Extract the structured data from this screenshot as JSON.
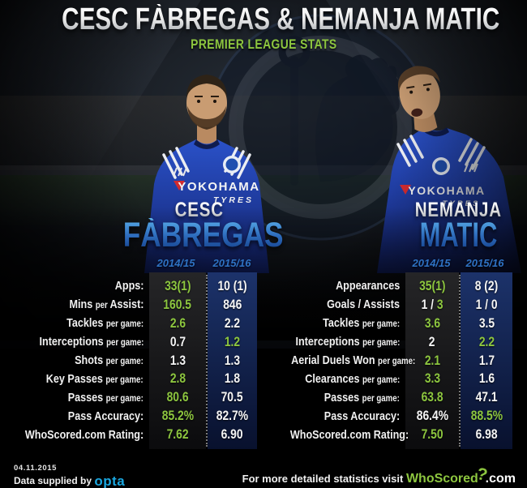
{
  "colors": {
    "green": "#8dc63f",
    "opta_blue": "#1aa7e0",
    "season_blue": "#2e72c4",
    "name_blue": "#2f6fc0",
    "silver": "#e9e9e9"
  },
  "header": {
    "title": "CESC FÀBREGAS & NEMANJA MATIC",
    "subtitle": "PREMIER LEAGUE STATS"
  },
  "jersey": {
    "sponsor": "YOKOHAMA",
    "sponsor_sub": "TYRES"
  },
  "players": [
    {
      "name_first": "CESC",
      "name_last": "FÀBREGAS",
      "seasons": [
        "2014/15",
        "2015/16"
      ],
      "rows": [
        {
          "label": [
            [
              "Apps:",
              1
            ]
          ],
          "c1": [
            [
              "33(1)",
              1
            ]
          ],
          "c2": [
            [
              "10 (1)",
              0
            ]
          ]
        },
        {
          "label": [
            [
              "Mins ",
              1
            ],
            [
              "per ",
              0
            ],
            [
              "Assist:",
              1
            ]
          ],
          "c1": [
            [
              "160.5",
              1
            ]
          ],
          "c2": [
            [
              "846",
              0
            ]
          ]
        },
        {
          "label": [
            [
              "Tackles ",
              1
            ],
            [
              "per game:",
              0
            ]
          ],
          "c1": [
            [
              "2.6",
              1
            ]
          ],
          "c2": [
            [
              "2.2",
              0
            ]
          ]
        },
        {
          "label": [
            [
              "Interceptions ",
              1
            ],
            [
              "per game:",
              0
            ]
          ],
          "c1": [
            [
              "0.7",
              0
            ]
          ],
          "c2": [
            [
              "1.2",
              1
            ]
          ]
        },
        {
          "label": [
            [
              "Shots ",
              1
            ],
            [
              "per game:",
              0
            ]
          ],
          "c1": [
            [
              "1.3",
              0
            ]
          ],
          "c2": [
            [
              "1.3",
              0
            ]
          ]
        },
        {
          "label": [
            [
              "Key Passes ",
              1
            ],
            [
              "per game:",
              0
            ]
          ],
          "c1": [
            [
              "2.8",
              1
            ]
          ],
          "c2": [
            [
              "1.8",
              0
            ]
          ]
        },
        {
          "label": [
            [
              "Passes ",
              1
            ],
            [
              "per game:",
              0
            ]
          ],
          "c1": [
            [
              "80.6",
              1
            ]
          ],
          "c2": [
            [
              "70.5",
              0
            ]
          ]
        },
        {
          "label": [
            [
              "Pass Accuracy:",
              1
            ]
          ],
          "c1": [
            [
              "85.2%",
              1
            ]
          ],
          "c2": [
            [
              "82.7%",
              0
            ]
          ]
        },
        {
          "label": [
            [
              "WhoScored.com Rating:",
              1
            ]
          ],
          "c1": [
            [
              "7.62",
              1
            ]
          ],
          "c2": [
            [
              "6.90",
              0
            ]
          ]
        }
      ]
    },
    {
      "name_first": "NEMANJA",
      "name_last": "MATIC",
      "seasons": [
        "2014/15",
        "2015/16"
      ],
      "rows": [
        {
          "label": [
            [
              "Appearances",
              1
            ]
          ],
          "c1": [
            [
              "35(1)",
              1
            ]
          ],
          "c2": [
            [
              "8 (2)",
              0
            ]
          ]
        },
        {
          "label": [
            [
              "Goals / Assists",
              1
            ]
          ],
          "c1": [
            [
              "1 / ",
              0
            ],
            [
              "3",
              1
            ]
          ],
          "c2": [
            [
              "1 / 0",
              0
            ]
          ]
        },
        {
          "label": [
            [
              "Tackles ",
              1
            ],
            [
              "per game:",
              0
            ]
          ],
          "c1": [
            [
              "3.6",
              1
            ]
          ],
          "c2": [
            [
              "3.5",
              0
            ]
          ]
        },
        {
          "label": [
            [
              "Interceptions ",
              1
            ],
            [
              "per game:",
              0
            ]
          ],
          "c1": [
            [
              "2",
              0
            ]
          ],
          "c2": [
            [
              "2.2",
              1
            ]
          ]
        },
        {
          "label": [
            [
              "Aerial Duels Won ",
              1
            ],
            [
              "per game:",
              0
            ]
          ],
          "c1": [
            [
              "2.1",
              1
            ]
          ],
          "c2": [
            [
              "1.7",
              0
            ]
          ]
        },
        {
          "label": [
            [
              "Clearances ",
              1
            ],
            [
              "per game:",
              0
            ]
          ],
          "c1": [
            [
              "3.3",
              1
            ]
          ],
          "c2": [
            [
              "1.6",
              0
            ]
          ]
        },
        {
          "label": [
            [
              "Passes ",
              1
            ],
            [
              "per game:",
              0
            ]
          ],
          "c1": [
            [
              "63.8",
              1
            ]
          ],
          "c2": [
            [
              "47.1",
              0
            ]
          ]
        },
        {
          "label": [
            [
              "Pass Accuracy:",
              1
            ]
          ],
          "c1": [
            [
              "86.4%",
              0
            ]
          ],
          "c2": [
            [
              "88.5%",
              1
            ]
          ]
        },
        {
          "label": [
            [
              "WhoScored.com Rating:",
              1
            ]
          ],
          "c1": [
            [
              "7.50",
              1
            ]
          ],
          "c2": [
            [
              "6.98",
              0
            ]
          ]
        }
      ]
    }
  ],
  "footer": {
    "date": "04.11.2015",
    "supplied_by": "Data supplied by",
    "opta": "opta",
    "visit_text": "For more detailed statistics visit",
    "whoscored": "WhoScored",
    "qmark": "?",
    "com": ".com"
  },
  "chart_data": [
    {
      "type": "table",
      "title": "Cesc Fàbregas — Premier League Stats",
      "columns": [
        "Stat",
        "2014/15",
        "2015/16"
      ],
      "rows": [
        [
          "Apps",
          "33(1)",
          "10 (1)"
        ],
        [
          "Mins per Assist",
          "160.5",
          "846"
        ],
        [
          "Tackles per game",
          "2.6",
          "2.2"
        ],
        [
          "Interceptions per game",
          "0.7",
          "1.2"
        ],
        [
          "Shots per game",
          "1.3",
          "1.3"
        ],
        [
          "Key Passes per game",
          "2.8",
          "1.8"
        ],
        [
          "Passes per game",
          "80.6",
          "70.5"
        ],
        [
          "Pass Accuracy",
          "85.2%",
          "82.7%"
        ],
        [
          "WhoScored.com Rating",
          "7.62",
          "6.90"
        ]
      ]
    },
    {
      "type": "table",
      "title": "Nemanja Matic — Premier League Stats",
      "columns": [
        "Stat",
        "2014/15",
        "2015/16"
      ],
      "rows": [
        [
          "Appearances",
          "35(1)",
          "8 (2)"
        ],
        [
          "Goals / Assists",
          "1 / 3",
          "1 / 0"
        ],
        [
          "Tackles per game",
          "3.6",
          "3.5"
        ],
        [
          "Interceptions per game",
          "2",
          "2.2"
        ],
        [
          "Aerial Duels Won per game",
          "2.1",
          "1.7"
        ],
        [
          "Clearances per game",
          "3.3",
          "1.6"
        ],
        [
          "Passes per game",
          "63.8",
          "47.1"
        ],
        [
          "Pass Accuracy",
          "86.4%",
          "88.5%"
        ],
        [
          "WhoScored.com Rating",
          "7.50",
          "6.98"
        ]
      ]
    }
  ]
}
